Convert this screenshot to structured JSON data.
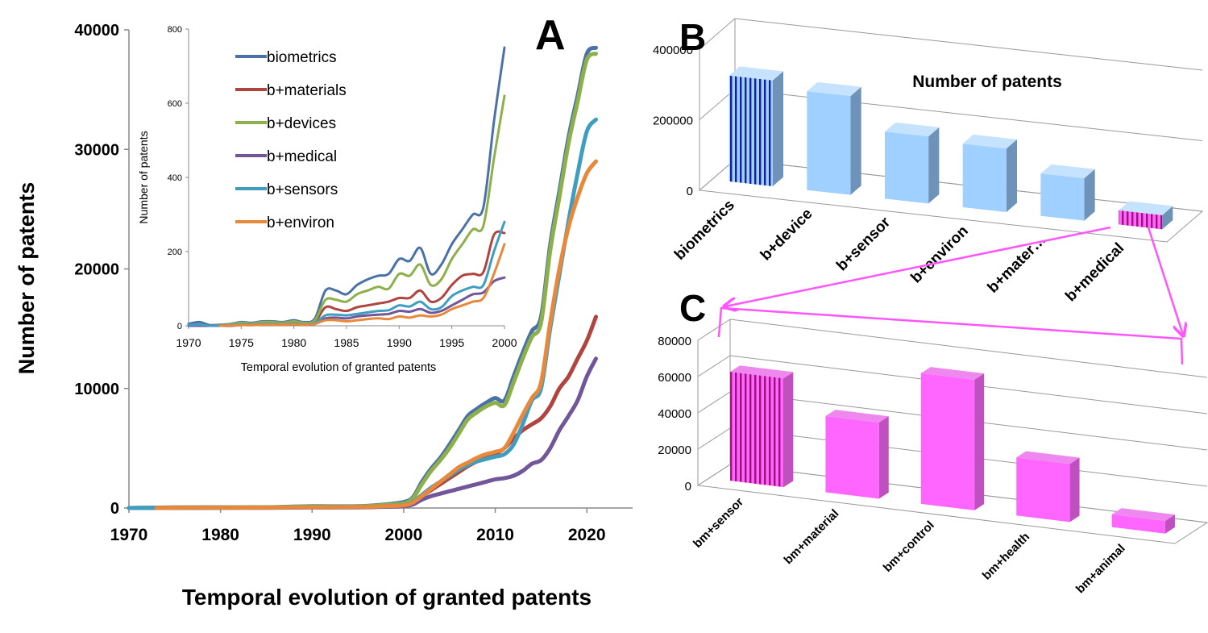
{
  "panel_labels": {
    "a": "A",
    "b": "B",
    "c": "C"
  },
  "colors": {
    "biometrics": "#4a72a8",
    "materials": "#b0443e",
    "devices": "#8db04a",
    "medical": "#72569a",
    "sensors": "#3f9ec0",
    "environ": "#e8883a",
    "bar_blue": "#9fd0ff",
    "bar_blue_side": "#6f92b8",
    "bar_blue_top": "#c5e2ff",
    "bar_pink": "#ff66ff",
    "bar_pink_side": "#c050c0",
    "bar_pink_top": "#ee88ee",
    "stripe_dark_blue": "#14209e",
    "stripe_dark_pink": "#a0127a",
    "arrow": "#ff55ff"
  },
  "chart_data": [
    {
      "id": "A",
      "type": "line",
      "xlabel": "Temporal evolution of granted patents",
      "ylabel": "Number of patents",
      "xlim": [
        1970,
        2025
      ],
      "ylim": [
        0,
        40000
      ],
      "xticks": [
        1970,
        1980,
        1990,
        2000,
        2010,
        2020
      ],
      "yticks": [
        0,
        10000,
        20000,
        30000,
        40000
      ],
      "grid": false,
      "series": [
        {
          "name": "biometrics",
          "color_key": "biometrics",
          "x": [
            1970,
            1975,
            1980,
            1985,
            1990,
            1995,
            1998,
            2000,
            2001,
            2002,
            2003,
            2004,
            2005,
            2006,
            2007,
            2008,
            2009,
            2010,
            2011,
            2012,
            2013,
            2014,
            2015,
            2016,
            2017,
            2018,
            2019,
            2020,
            2021
          ],
          "y": [
            0,
            50,
            60,
            70,
            150,
            150,
            300,
            500,
            900,
            2200,
            3300,
            4200,
            5300,
            6500,
            7700,
            8300,
            8800,
            9200,
            9000,
            11000,
            13000,
            14800,
            16000,
            22000,
            26500,
            31000,
            34500,
            38000,
            38500
          ]
        },
        {
          "name": "b+materials",
          "color_key": "materials",
          "x": [
            1970,
            1975,
            1980,
            1985,
            1990,
            1995,
            1998,
            2000,
            2001,
            2002,
            2003,
            2004,
            2005,
            2006,
            2007,
            2008,
            2009,
            2010,
            2011,
            2012,
            2013,
            2014,
            2015,
            2016,
            2017,
            2018,
            2019,
            2020,
            2021
          ],
          "y": [
            0,
            20,
            30,
            40,
            70,
            80,
            200,
            250,
            500,
            1000,
            1500,
            2000,
            2500,
            3000,
            3500,
            3900,
            4200,
            4500,
            5000,
            5800,
            6500,
            7000,
            7500,
            8500,
            10000,
            11000,
            12500,
            14000,
            16000
          ]
        },
        {
          "name": "b+devices",
          "color_key": "devices",
          "x": [
            1970,
            1975,
            1980,
            1985,
            1990,
            1995,
            1998,
            2000,
            2001,
            2002,
            2003,
            2004,
            2005,
            2006,
            2007,
            2008,
            2009,
            2010,
            2011,
            2012,
            2013,
            2014,
            2015,
            2016,
            2017,
            2018,
            2019,
            2020,
            2021
          ],
          "y": [
            0,
            40,
            50,
            60,
            120,
            130,
            250,
            400,
            800,
            2000,
            3100,
            4000,
            5000,
            6200,
            7400,
            8000,
            8500,
            8800,
            8600,
            10500,
            12500,
            14300,
            15500,
            21500,
            26000,
            30500,
            34000,
            37500,
            38000
          ]
        },
        {
          "name": "b+medical",
          "color_key": "medical",
          "x": [
            1970,
            1975,
            1980,
            1985,
            1990,
            1995,
            1998,
            2000,
            2001,
            2002,
            2003,
            2004,
            2005,
            2006,
            2007,
            2008,
            2009,
            2010,
            2011,
            2012,
            2013,
            2014,
            2015,
            2016,
            2017,
            2018,
            2019,
            2020,
            2021
          ],
          "y": [
            0,
            10,
            15,
            20,
            40,
            50,
            100,
            150,
            300,
            700,
            1000,
            1200,
            1400,
            1600,
            1800,
            2000,
            2200,
            2400,
            2500,
            2700,
            3100,
            3700,
            4000,
            5000,
            6500,
            7700,
            9000,
            11000,
            12500
          ]
        },
        {
          "name": "b+sensors",
          "color_key": "sensors",
          "x": [
            1970,
            1975,
            1980,
            1985,
            1990,
            1995,
            1998,
            2000,
            2001,
            2002,
            2003,
            2004,
            2005,
            2006,
            2007,
            2008,
            2009,
            2010,
            2011,
            2012,
            2013,
            2014,
            2015,
            2016,
            2017,
            2018,
            2019,
            2020,
            2021
          ],
          "y": [
            0,
            20,
            30,
            40,
            80,
            90,
            150,
            250,
            500,
            1100,
            1700,
            2200,
            2700,
            3200,
            3600,
            3900,
            4100,
            4300,
            4500,
            5300,
            7000,
            9000,
            10000,
            15000,
            19500,
            24000,
            28000,
            31500,
            32500
          ]
        },
        {
          "name": "b+environ",
          "color_key": "environ",
          "x": [
            1973,
            1975,
            1980,
            1985,
            1990,
            1995,
            1998,
            2000,
            2001,
            2002,
            2003,
            2004,
            2005,
            2006,
            2007,
            2008,
            2009,
            2010,
            2011,
            2012,
            2013,
            2014,
            2015,
            2016,
            2017,
            2018,
            2019,
            2020,
            2021
          ],
          "y": [
            0,
            20,
            30,
            40,
            70,
            80,
            150,
            220,
            450,
            1000,
            1600,
            2200,
            2800,
            3400,
            3800,
            4200,
            4500,
            4700,
            5000,
            6300,
            7800,
            9200,
            10500,
            15500,
            20000,
            23500,
            26000,
            28000,
            29000
          ]
        }
      ]
    },
    {
      "id": "A-inset",
      "type": "line",
      "xlabel": "Temporal evolution of granted patents",
      "ylabel": "Number of patents",
      "xlim": [
        1970,
        2000
      ],
      "ylim": [
        0,
        800
      ],
      "xticks": [
        1970,
        1975,
        1980,
        1985,
        1990,
        1995,
        2000
      ],
      "yticks": [
        0,
        200,
        400,
        600,
        800
      ],
      "grid": false,
      "legend": "top-left",
      "series": [
        {
          "name": "biometrics",
          "color_key": "biometrics",
          "x": [
            1970,
            1971,
            1972,
            1973,
            1974,
            1975,
            1976,
            1977,
            1978,
            1979,
            1980,
            1981,
            1982,
            1983,
            1984,
            1985,
            1986,
            1987,
            1988,
            1989,
            1990,
            1991,
            1992,
            1993,
            1994,
            1995,
            1996,
            1997,
            1998,
            1999,
            2000
          ],
          "y": [
            5,
            10,
            2,
            3,
            5,
            10,
            8,
            12,
            12,
            10,
            15,
            10,
            20,
            95,
            95,
            85,
            110,
            125,
            135,
            140,
            180,
            175,
            210,
            140,
            165,
            220,
            260,
            300,
            320,
            550,
            750
          ]
        },
        {
          "name": "b+materials",
          "color_key": "materials",
          "x": [
            1970,
            1971,
            1972,
            1973,
            1974,
            1975,
            1976,
            1977,
            1978,
            1979,
            1980,
            1981,
            1982,
            1983,
            1984,
            1985,
            1986,
            1987,
            1988,
            1989,
            1990,
            1991,
            1992,
            1993,
            1994,
            1995,
            1996,
            1997,
            1998,
            1999,
            2000
          ],
          "y": [
            0,
            0,
            0,
            2,
            3,
            5,
            5,
            6,
            6,
            6,
            8,
            5,
            10,
            50,
            45,
            40,
            50,
            55,
            60,
            65,
            75,
            75,
            95,
            65,
            75,
            110,
            135,
            140,
            145,
            245,
            250
          ]
        },
        {
          "name": "b+devices",
          "color_key": "devices",
          "x": [
            1970,
            1971,
            1972,
            1973,
            1974,
            1975,
            1976,
            1977,
            1978,
            1979,
            1980,
            1981,
            1982,
            1983,
            1984,
            1985,
            1986,
            1987,
            1988,
            1989,
            1990,
            1991,
            1992,
            1993,
            1994,
            1995,
            1996,
            1997,
            1998,
            1999,
            2000
          ],
          "y": [
            0,
            3,
            0,
            2,
            4,
            8,
            6,
            10,
            10,
            8,
            12,
            8,
            15,
            70,
            70,
            65,
            85,
            95,
            105,
            100,
            140,
            135,
            165,
            110,
            125,
            180,
            220,
            260,
            270,
            450,
            620
          ]
        },
        {
          "name": "b+medical",
          "color_key": "medical",
          "x": [
            1970,
            1971,
            1972,
            1973,
            1974,
            1975,
            1976,
            1977,
            1978,
            1979,
            1980,
            1981,
            1982,
            1983,
            1984,
            1985,
            1986,
            1987,
            1988,
            1989,
            1990,
            1991,
            1992,
            1993,
            1994,
            1995,
            1996,
            1997,
            1998,
            1999,
            2000
          ],
          "y": [
            0,
            0,
            0,
            0,
            0,
            2,
            2,
            3,
            3,
            3,
            4,
            3,
            5,
            20,
            22,
            20,
            25,
            28,
            30,
            32,
            40,
            38,
            45,
            35,
            40,
            55,
            70,
            85,
            90,
            120,
            130
          ]
        },
        {
          "name": "b+sensors",
          "color_key": "sensors",
          "x": [
            1970,
            1971,
            1972,
            1973,
            1974,
            1975,
            1976,
            1977,
            1978,
            1979,
            1980,
            1981,
            1982,
            1983,
            1984,
            1985,
            1986,
            1987,
            1988,
            1989,
            1990,
            1991,
            1992,
            1993,
            1994,
            1995,
            1996,
            1997,
            1998,
            1999,
            2000
          ],
          "y": [
            2,
            3,
            0,
            1,
            2,
            4,
            3,
            5,
            5,
            4,
            6,
            4,
            8,
            28,
            30,
            28,
            32,
            36,
            40,
            42,
            55,
            52,
            65,
            45,
            50,
            80,
            95,
            105,
            110,
            200,
            280
          ]
        },
        {
          "name": "b+environ",
          "color_key": "environ",
          "x": [
            1973,
            1974,
            1975,
            1976,
            1977,
            1978,
            1979,
            1980,
            1981,
            1982,
            1983,
            1984,
            1985,
            1986,
            1987,
            1988,
            1989,
            1990,
            1991,
            1992,
            1993,
            1994,
            1995,
            1996,
            1997,
            1998,
            1999,
            2000
          ],
          "y": [
            0,
            1,
            2,
            2,
            3,
            3,
            3,
            4,
            3,
            5,
            15,
            15,
            12,
            15,
            18,
            20,
            18,
            25,
            22,
            28,
            25,
            30,
            45,
            55,
            65,
            75,
            140,
            220
          ]
        }
      ]
    },
    {
      "id": "B",
      "type": "bar",
      "title": "Number of patents",
      "categories": [
        "biometrics",
        "b+device",
        "b+sensor",
        "b+environ",
        "b+mater…",
        "b+medical"
      ],
      "values": [
        300000,
        280000,
        190000,
        180000,
        120000,
        40000
      ],
      "ylim": [
        0,
        400000
      ],
      "yticks": [
        0,
        200000,
        400000
      ],
      "grid": true,
      "highlight": {
        "biometrics": "striped-blue",
        "b+medical": "striped-pink"
      }
    },
    {
      "id": "C",
      "type": "bar",
      "categories": [
        "bm+sensor",
        "bm+material",
        "bm+control",
        "bm+health",
        "bm+animal"
      ],
      "values": [
        60000,
        42000,
        72000,
        32000,
        7000
      ],
      "ylim": [
        0,
        80000
      ],
      "yticks": [
        0,
        20000,
        40000,
        60000,
        80000
      ],
      "grid": true,
      "highlight": {
        "bm+sensor": "striped-pink"
      }
    }
  ]
}
